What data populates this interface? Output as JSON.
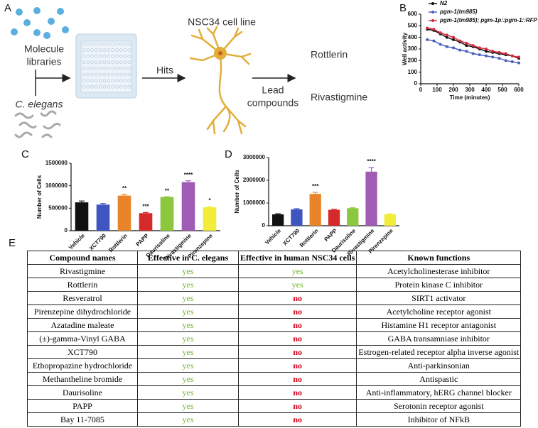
{
  "panel_a": {
    "label": "A",
    "source_label": [
      "Molecule",
      "libraries"
    ],
    "organism": "C. elegans",
    "step": "Hits",
    "cell_line": "NSC34 cell line",
    "result_label": [
      "Lead",
      "compounds"
    ],
    "compounds": [
      "Rottlerin",
      "Rivastigmine"
    ]
  },
  "chart_data": [
    {
      "type": "line",
      "label": "B",
      "x_label": "Time (minutes)",
      "y_label": "Well activity",
      "x": [
        40,
        80,
        120,
        160,
        200,
        240,
        280,
        320,
        360,
        400,
        440,
        480,
        520,
        560,
        600
      ],
      "series": [
        {
          "name": "N2",
          "color": "#111111",
          "values": [
            470,
            460,
            430,
            400,
            380,
            360,
            330,
            320,
            300,
            280,
            270,
            260,
            250,
            240,
            220
          ]
        },
        {
          "name": "pgm-1(tm985)",
          "color": "#4a5fc1",
          "values": [
            380,
            370,
            340,
            320,
            310,
            290,
            280,
            260,
            250,
            240,
            230,
            220,
            200,
            190,
            180
          ]
        },
        {
          "name": "pgm-1(tm985); pgm-1p::pgm-1::RFP",
          "color": "#d8283a",
          "values": [
            480,
            470,
            440,
            420,
            400,
            370,
            350,
            330,
            310,
            300,
            280,
            270,
            260,
            240,
            230
          ]
        }
      ],
      "xlim": [
        0,
        600
      ],
      "xticks": [
        0,
        100,
        200,
        300,
        400,
        500,
        600
      ],
      "ylim": [
        0,
        600
      ],
      "yticks": [
        0,
        100,
        200,
        300,
        400,
        500,
        600
      ]
    },
    {
      "type": "bar",
      "label": "C",
      "y_label": "Number of Cells",
      "categories": [
        "Vehicle",
        "XCT790",
        "Rottlerin",
        "PAPP",
        "Daurisoline",
        "Rivastigmine",
        "Pirenzepine"
      ],
      "values": [
        630000,
        580000,
        780000,
        390000,
        750000,
        1080000,
        520000
      ],
      "errors": [
        30000,
        25000,
        30000,
        15000,
        5000,
        30000,
        15000
      ],
      "significance": [
        null,
        null,
        "**",
        "***",
        "**",
        "****",
        "*"
      ],
      "colors": [
        "#111111",
        "#3f55c0",
        "#e8852a",
        "#d42a2a",
        "#8dc63f",
        "#a05cb5",
        "#f2ec3a"
      ],
      "ylim": [
        0,
        1500000
      ],
      "yticks": [
        0,
        500000,
        1000000,
        1500000
      ]
    },
    {
      "type": "bar",
      "label": "D",
      "y_label": "Number of Cells",
      "categories": [
        "Vehicle",
        "XCT790",
        "Rottlerin",
        "PAPP",
        "Daurisoline",
        "Rivastigmine",
        "Pirenzepine"
      ],
      "values": [
        500000,
        720000,
        1400000,
        700000,
        770000,
        2380000,
        500000
      ],
      "errors": [
        30000,
        30000,
        70000,
        25000,
        20000,
        180000,
        30000
      ],
      "significance": [
        null,
        null,
        "***",
        null,
        null,
        "****",
        null
      ],
      "colors": [
        "#111111",
        "#3f55c0",
        "#e8852a",
        "#d42a2a",
        "#8dc63f",
        "#a05cb5",
        "#f2ec3a"
      ],
      "ylim": [
        0,
        3000000
      ],
      "yticks": [
        0,
        1000000,
        2000000,
        3000000
      ]
    }
  ],
  "table": {
    "label": "E",
    "header": [
      "Compound names",
      "Effective in C. elegans",
      "Effective in human NSC34 cells",
      "Known functions"
    ],
    "rows": [
      [
        "Rivastigmine",
        "yes",
        "yes",
        "Acetylcholinesterase inhibitor"
      ],
      [
        "Rottlerin",
        "yes",
        "yes",
        "Protein kinase C inhibitor"
      ],
      [
        "Resveratrol",
        "yes",
        "no",
        "SIRT1 activator"
      ],
      [
        "Pirenzepine dihydrochloride",
        "yes",
        "no",
        "Acetylcholine receptor agonist"
      ],
      [
        "Azatadine maleate",
        "yes",
        "no",
        "Histamine H1 receptor antagonist"
      ],
      [
        "(±)-gamma-Vinyl GABA",
        "yes",
        "no",
        "GABA transamniase inhibitor"
      ],
      [
        "XCT790",
        "yes",
        "no",
        "Estrogen-related receptor alpha inverse agonist"
      ],
      [
        "Ethopropazine hydrochloride",
        "yes",
        "no",
        "Anti-parkinsonian"
      ],
      [
        "Methantheline bromide",
        "yes",
        "no",
        "Antispastic"
      ],
      [
        "Daurisoline",
        "yes",
        "no",
        "Anti-inflammatory, hERG channel blocker"
      ],
      [
        "PAPP",
        "yes",
        "no",
        "Serotonin receptor agonist"
      ],
      [
        "Bay 11-7085",
        "yes",
        "no",
        "Inhibitor of NFkB"
      ]
    ]
  }
}
